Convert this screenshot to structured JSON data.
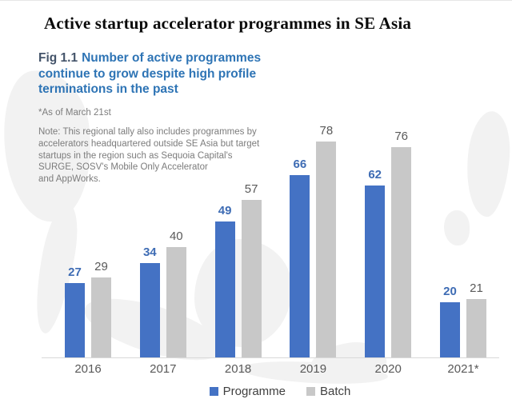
{
  "page": {
    "title": "Active startup accelerator programmes in SE Asia"
  },
  "figure": {
    "fig_label": "Fig 1.1",
    "subtitle_lines": [
      "Number of active programmes",
      "continue to grow despite high profile",
      "terminations in the past"
    ],
    "asof_note": "*As of March 21st",
    "note_lines": [
      "Note: This regional tally also includes programmes by",
      "accelerators headquartered outside SE Asia but target",
      "startups in the region such as Sequoia Capital's",
      "SURGE, SOSV's Mobile Only Accelerator",
      "and AppWorks."
    ]
  },
  "colors": {
    "programme_bar": "#4472c4",
    "programme_label": "#3e6cb4",
    "batch_bar": "#c8c8c8",
    "batch_label": "#595959",
    "subtitle_blue": "#2e74b5",
    "fig_label_slate": "#44546a",
    "axis_text": "#595959",
    "legend_text": "#404040"
  },
  "chart_data": {
    "type": "bar",
    "title": "Active startup accelerator programmes in SE Asia",
    "categories": [
      "2016",
      "2017",
      "2018",
      "2019",
      "2020",
      "2021*"
    ],
    "series": [
      {
        "name": "Programme",
        "color": "#4472c4",
        "label_color": "#3e6cb4",
        "values": [
          27,
          34,
          49,
          66,
          62,
          20
        ]
      },
      {
        "name": "Batch",
        "color": "#c8c8c8",
        "label_color": "#595959",
        "values": [
          29,
          40,
          57,
          78,
          76,
          21
        ]
      }
    ],
    "xlabel": "",
    "ylabel": "",
    "ylim": [
      0,
      85
    ],
    "grid": false,
    "data_labels": true,
    "legend_position": "bottom"
  }
}
